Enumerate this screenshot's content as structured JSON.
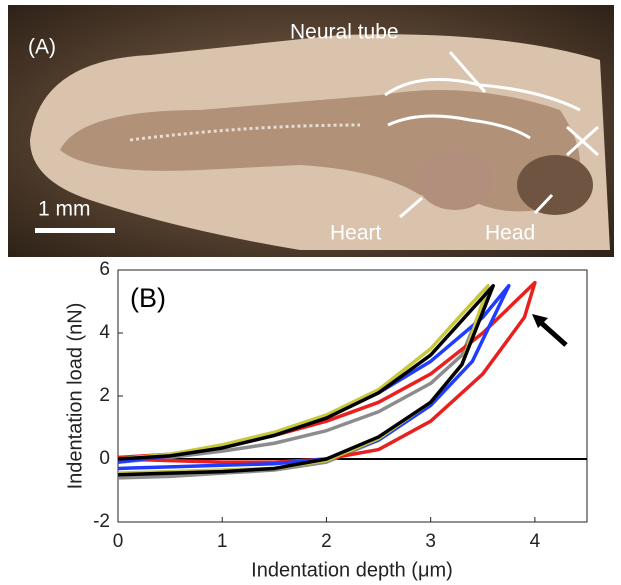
{
  "image": {
    "panel_label": "(A)",
    "labels": [
      "Neural tube",
      "Heart",
      "Head"
    ],
    "scale_bar": "1 mm"
  },
  "chart_data": {
    "type": "line",
    "annotation": "(B)",
    "x_label": "Indentation depth (μm)",
    "y_label": "Indentation load (nN)",
    "xlim": [
      0,
      4.5
    ],
    "ylim": [
      -2,
      6
    ],
    "xticks": [
      0,
      1,
      2,
      3,
      4
    ],
    "yticks": [
      -2,
      0,
      2,
      4,
      6
    ],
    "series": [
      {
        "color": "#8c8c8c",
        "x": [
          0,
          0.5,
          1,
          1.5,
          2,
          2.5,
          3,
          3.3,
          3.55,
          3.3,
          3,
          2.5,
          2,
          1.5,
          1,
          0.5,
          0
        ],
        "values": [
          -0.6,
          -0.55,
          -0.45,
          -0.35,
          -0.1,
          0.6,
          1.8,
          3,
          5.3,
          3.3,
          2.4,
          1.5,
          0.9,
          0.5,
          0.25,
          0.05,
          -0.1
        ]
      },
      {
        "color": "#e8201e",
        "x": [
          0,
          0.5,
          1,
          1.5,
          2,
          2.5,
          3,
          3.5,
          3.9,
          4.0,
          3.5,
          3,
          2.5,
          2,
          1.5,
          1,
          0.5,
          0
        ],
        "values": [
          0,
          -0.05,
          -0.1,
          -0.1,
          0,
          0.3,
          1.2,
          2.7,
          4.5,
          5.6,
          4.0,
          2.7,
          1.8,
          1.2,
          0.75,
          0.4,
          0.15,
          0.05
        ]
      },
      {
        "color": "#1f3cff",
        "x": [
          0,
          0.5,
          1,
          1.5,
          2,
          2.5,
          3,
          3.4,
          3.75,
          3.5,
          3,
          2.5,
          2,
          1.5,
          1,
          0.5,
          0
        ],
        "values": [
          -0.3,
          -0.25,
          -0.2,
          -0.15,
          0,
          0.6,
          1.7,
          3.1,
          5.5,
          4.5,
          3.1,
          2.1,
          1.35,
          0.8,
          0.4,
          0.1,
          -0.1
        ]
      },
      {
        "color": "#c8c83c",
        "x": [
          0,
          0.5,
          1,
          1.5,
          2,
          2.5,
          3,
          3.3,
          3.55,
          3.3,
          3,
          2.5,
          2,
          1.5,
          1,
          0.5,
          0
        ],
        "values": [
          -0.45,
          -0.4,
          -0.35,
          -0.3,
          -0.05,
          0.65,
          1.8,
          3.0,
          5.5,
          4.6,
          3.5,
          2.2,
          1.4,
          0.85,
          0.45,
          0.15,
          0
        ]
      },
      {
        "color": "#000000",
        "x": [
          0,
          0.5,
          1,
          1.5,
          2,
          2.5,
          3,
          3.3,
          3.6,
          3.3,
          3,
          2.5,
          2,
          1.5,
          1,
          0.5,
          0
        ],
        "values": [
          -0.5,
          -0.45,
          -0.4,
          -0.3,
          0,
          0.7,
          1.8,
          3.0,
          5.5,
          4.4,
          3.3,
          2.1,
          1.3,
          0.75,
          0.35,
          0.1,
          0
        ]
      }
    ]
  }
}
